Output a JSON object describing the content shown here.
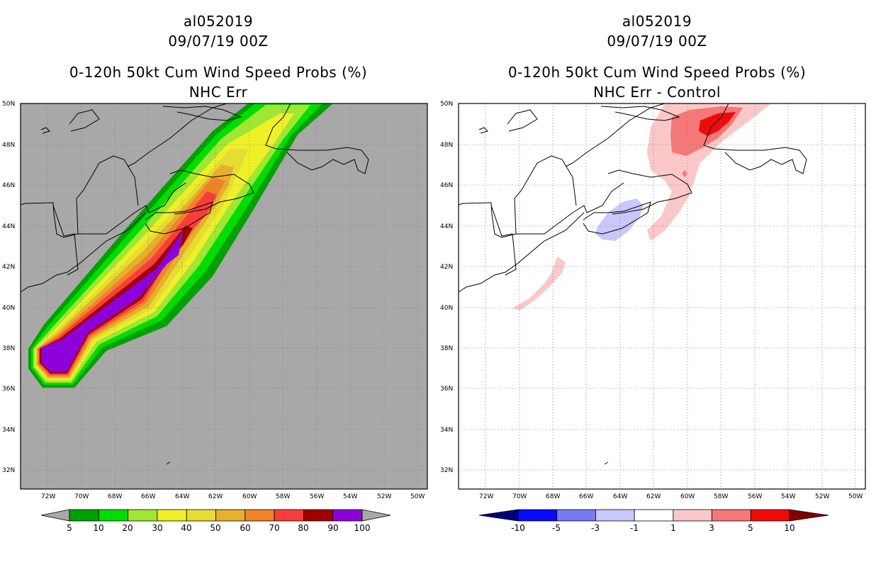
{
  "left": {
    "storm_id": "al052019",
    "datetime": "09/07/19 00Z",
    "product": "0-120h 50kt Cum Wind Speed Probs (%)",
    "subtitle": "NHC Err",
    "background_color": "#a8a8a8",
    "colorbar": {
      "colors": [
        "#00a000",
        "#00dd00",
        "#a0e632",
        "#f0f028",
        "#e6dc32",
        "#e6af2d",
        "#f08228",
        "#fa3c3c",
        "#a00000",
        "#8c00dc"
      ],
      "labels": [
        "5",
        "10",
        "20",
        "30",
        "40",
        "50",
        "60",
        "70",
        "80",
        "90",
        "100"
      ]
    }
  },
  "right": {
    "storm_id": "al052019",
    "datetime": "09/07/19 00Z",
    "product": "0-120h 50kt Cum Wind Speed Probs (%)",
    "subtitle": "NHC Err - Control",
    "background_color": "#ffffff",
    "colorbar": {
      "colors": [
        "#0000c8",
        "#0a0afa",
        "#7878f0",
        "#c8c8fa",
        "#ffffff",
        "#fac8c8",
        "#f57878",
        "#f00a0a",
        "#a00000"
      ],
      "labels": [
        "-10",
        "-5",
        "-3",
        "-1",
        "1",
        "3",
        "5",
        "10"
      ]
    }
  },
  "axes": {
    "lat_labels": [
      "50N",
      "48N",
      "46N",
      "44N",
      "42N",
      "40N",
      "38N",
      "36N",
      "34N",
      "32N"
    ],
    "lon_labels": [
      "72W",
      "70W",
      "68W",
      "66W",
      "64W",
      "62W",
      "60W",
      "58W",
      "56W",
      "54W",
      "52W",
      "50W"
    ]
  }
}
